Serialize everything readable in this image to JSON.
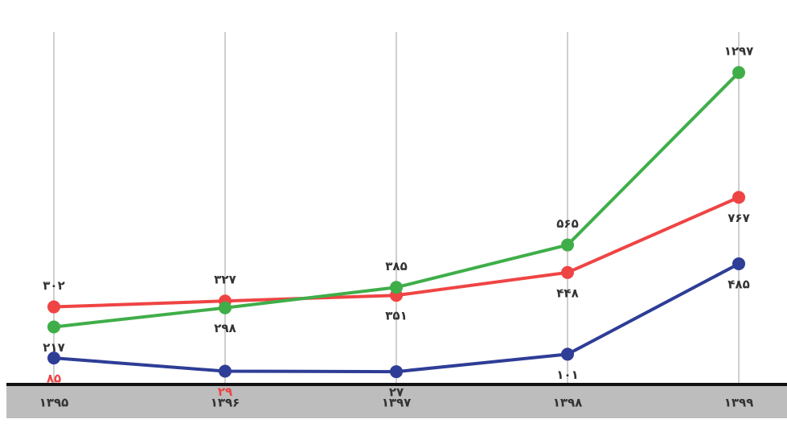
{
  "chart_data": {
    "type": "line",
    "categories": [
      "۱۳۹۵",
      "۱۳۹۶",
      "۱۳۹۷",
      "۱۳۹۸",
      "۱۳۹۹"
    ],
    "series": [
      {
        "name": null,
        "color": "#ef4444",
        "values": [
          302,
          327,
          351,
          448,
          767
        ],
        "value_labels": [
          "۳۰۲",
          "۳۲۷",
          "۳۵۱",
          "۴۴۸",
          "۷۶۷"
        ]
      },
      {
        "name": null,
        "color": "#3fae49",
        "values": [
          217,
          298,
          385,
          565,
          1297
        ],
        "value_labels": [
          "۲۱۷",
          "۲۹۸",
          "۳۸۵",
          "۵۶۵",
          "۱۲۹۷"
        ]
      },
      {
        "name": null,
        "color": "#2e3d96",
        "values": [
          85,
          29,
          27,
          101,
          485
        ],
        "value_labels": [
          "۸۵",
          "۲۹",
          "۲۷",
          "۱۰۱",
          "۴۸۵"
        ],
        "value_label_colors": [
          "#ef4444",
          "#ef4444",
          "#333333",
          "#333333",
          "#333333"
        ]
      }
    ],
    "ylim": [
      0,
      1400
    ]
  }
}
